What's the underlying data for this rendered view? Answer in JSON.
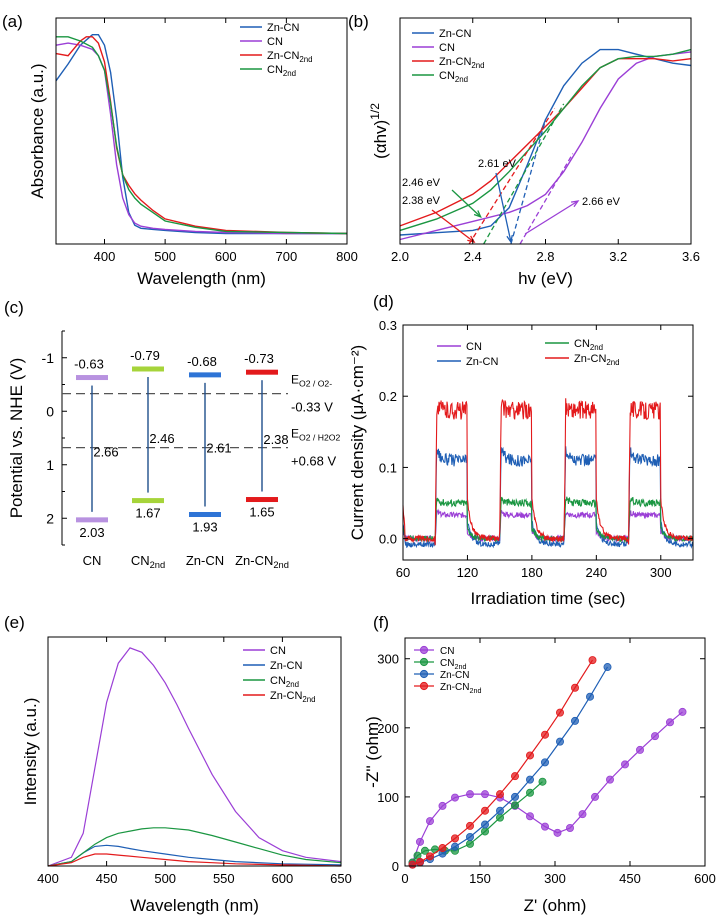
{
  "colors": {
    "Zn-CN": "#1f5fb5",
    "CN": "#9b3fd6",
    "Zn-CN_2nd": "#e31a1c",
    "CN_2nd": "#1a9641",
    "CN_bar": "#b892e0",
    "CN_2nd_bar": "#a6d43a",
    "Zn-CN_bar": "#2e74d6",
    "Zn-CN_2nd_bar": "#e31a1c"
  },
  "chart_data": [
    {
      "panel": "(a)",
      "type": "line",
      "xlabel": "Wavelength (nm)",
      "ylabel": "Absorbance (a.u.)",
      "xlim": [
        320,
        800
      ],
      "ylim": [
        0,
        1.08
      ],
      "xticks": [
        400,
        500,
        600,
        700,
        800
      ],
      "legend": "top-right",
      "series": [
        {
          "name": "Zn-CN",
          "key": "Zn-CN",
          "x": [
            320,
            340,
            360,
            380,
            390,
            400,
            410,
            420,
            430,
            440,
            450,
            460,
            480,
            500,
            550,
            600,
            700,
            800
          ],
          "y": [
            0.78,
            0.86,
            0.95,
            1.0,
            1.0,
            0.95,
            0.82,
            0.6,
            0.32,
            0.15,
            0.09,
            0.075,
            0.07,
            0.065,
            0.055,
            0.05,
            0.05,
            0.05
          ]
        },
        {
          "name": "CN",
          "key": "CN",
          "x": [
            320,
            340,
            360,
            380,
            390,
            400,
            410,
            420,
            430,
            440,
            450,
            460,
            480,
            500,
            550,
            600,
            700,
            800
          ],
          "y": [
            0.95,
            0.96,
            0.95,
            0.93,
            0.9,
            0.83,
            0.62,
            0.38,
            0.22,
            0.14,
            0.1,
            0.085,
            0.075,
            0.07,
            0.06,
            0.055,
            0.05,
            0.05
          ]
        },
        {
          "name": "Zn-CN₂nd",
          "key": "Zn-CN_2nd",
          "x": [
            320,
            340,
            360,
            370,
            380,
            390,
            400,
            410,
            420,
            430,
            440,
            450,
            460,
            480,
            500,
            550,
            600,
            700,
            800
          ],
          "y": [
            0.91,
            0.9,
            0.97,
            0.99,
            0.99,
            0.96,
            0.87,
            0.68,
            0.46,
            0.33,
            0.28,
            0.24,
            0.21,
            0.16,
            0.12,
            0.085,
            0.065,
            0.055,
            0.05
          ]
        },
        {
          "name": "CN₂nd",
          "key": "CN_2nd",
          "x": [
            320,
            340,
            360,
            380,
            390,
            400,
            410,
            420,
            430,
            440,
            450,
            460,
            480,
            500,
            550,
            600,
            700,
            800
          ],
          "y": [
            0.99,
            0.99,
            0.97,
            0.94,
            0.9,
            0.83,
            0.67,
            0.47,
            0.33,
            0.26,
            0.22,
            0.19,
            0.15,
            0.11,
            0.08,
            0.06,
            0.055,
            0.05
          ]
        }
      ]
    },
    {
      "panel": "(b)",
      "type": "line",
      "xlabel": "hv (eV)",
      "ylabel": "(αhv)",
      "ylabel_sup": "1/2",
      "xlim": [
        2.0,
        3.6
      ],
      "ylim": [
        0,
        1.0
      ],
      "xticks": [
        2.0,
        2.4,
        2.8,
        3.2,
        3.6
      ],
      "legend": "top-left",
      "series": [
        {
          "name": "Zn-CN",
          "key": "Zn-CN",
          "x": [
            2.0,
            2.2,
            2.4,
            2.5,
            2.6,
            2.7,
            2.8,
            2.9,
            3.0,
            3.1,
            3.2,
            3.3,
            3.4,
            3.5,
            3.6
          ],
          "y": [
            0.04,
            0.05,
            0.06,
            0.08,
            0.16,
            0.35,
            0.55,
            0.7,
            0.8,
            0.86,
            0.86,
            0.84,
            0.82,
            0.8,
            0.79
          ]
        },
        {
          "name": "CN",
          "key": "CN",
          "x": [
            2.0,
            2.2,
            2.4,
            2.6,
            2.7,
            2.8,
            2.9,
            3.0,
            3.1,
            3.2,
            3.3,
            3.4,
            3.5,
            3.6
          ],
          "y": [
            0.02,
            0.06,
            0.1,
            0.14,
            0.17,
            0.22,
            0.32,
            0.45,
            0.6,
            0.73,
            0.8,
            0.83,
            0.84,
            0.85
          ]
        },
        {
          "name": "Zn-CN₂nd",
          "key": "Zn-CN_2nd",
          "x": [
            2.0,
            2.2,
            2.4,
            2.5,
            2.6,
            2.7,
            2.8,
            2.9,
            3.0,
            3.1,
            3.2,
            3.3,
            3.4,
            3.5,
            3.6
          ],
          "y": [
            0.08,
            0.14,
            0.22,
            0.28,
            0.36,
            0.44,
            0.52,
            0.6,
            0.69,
            0.78,
            0.82,
            0.82,
            0.82,
            0.81,
            0.82
          ]
        },
        {
          "name": "CN₂nd",
          "key": "CN_2nd",
          "x": [
            2.0,
            2.2,
            2.4,
            2.5,
            2.6,
            2.7,
            2.8,
            2.9,
            3.0,
            3.1,
            3.2,
            3.3,
            3.4,
            3.5,
            3.6
          ],
          "y": [
            0.06,
            0.11,
            0.18,
            0.24,
            0.32,
            0.41,
            0.5,
            0.6,
            0.7,
            0.78,
            0.82,
            0.83,
            0.83,
            0.84,
            0.86
          ]
        }
      ],
      "annotations": [
        {
          "text": "2.38 eV",
          "key": "Zn-CN_2nd",
          "value": 2.38
        },
        {
          "text": "2.46 eV",
          "key": "CN_2nd",
          "value": 2.46
        },
        {
          "text": "2.61 eV",
          "key": "Zn-CN",
          "value": 2.61
        },
        {
          "text": "2.66 eV",
          "key": "CN",
          "value": 2.66
        }
      ]
    },
    {
      "panel": "(c)",
      "type": "band-diagram",
      "ylabel": "Potential vs. NHE (V)",
      "ylim": [
        -1.5,
        2.5
      ],
      "yticks": [
        -1,
        0,
        1,
        2
      ],
      "yticklabels": [
        "-1",
        "0",
        "1",
        "2"
      ],
      "samples": [
        {
          "label": "CN",
          "sub": "",
          "key": "CN_bar",
          "cb": -0.63,
          "vb": 2.03,
          "cb_label": "-0.63",
          "vb_label": "2.03",
          "mid_label": "2.66"
        },
        {
          "label": "CN",
          "sub": "2nd",
          "key": "CN_2nd_bar",
          "cb": -0.79,
          "vb": 1.67,
          "cb_label": "-0.79",
          "vb_label": "1.67",
          "mid_label": "2.46"
        },
        {
          "label": "Zn-CN",
          "sub": "",
          "key": "Zn-CN_bar",
          "cb": -0.68,
          "vb": 1.93,
          "cb_label": "-0.68",
          "vb_label": "1.93",
          "mid_label": "2.61"
        },
        {
          "label": "Zn-CN",
          "sub": "2nd",
          "key": "Zn-CN_2nd_bar",
          "cb": -0.73,
          "vb": 1.65,
          "cb_label": "-0.73",
          "vb_label": "1.65",
          "mid_label": "2.38"
        }
      ],
      "reference_lines": [
        {
          "value": -0.33,
          "label_main": "E",
          "label_sub": "O2 / O2-",
          "label_value": "-0.33  V"
        },
        {
          "value": 0.68,
          "label_main": "E",
          "label_sub": "O2 / H2O2",
          "label_value": "+0.68 V"
        }
      ]
    },
    {
      "panel": "(d)",
      "type": "line",
      "xlabel": "Irradiation time (sec)",
      "ylabel": "Current density (μA·cm⁻²)",
      "xlim": [
        60,
        330
      ],
      "ylim": [
        -0.03,
        0.3
      ],
      "xticks": [
        60,
        120,
        180,
        240,
        300
      ],
      "yticks": [
        0.0,
        0.1,
        0.2,
        0.3
      ],
      "light_on": [
        90,
        150,
        210,
        270
      ],
      "light_period": 30,
      "plateau": {
        "CN": 0.033,
        "Zn-CN": 0.11,
        "CN_2nd": 0.05,
        "Zn-CN_2nd": 0.18
      },
      "series": [
        {
          "name": "CN",
          "key": "CN",
          "on": 0.033,
          "spike": 0.04
        },
        {
          "name": "Zn-CN",
          "key": "Zn-CN",
          "on": 0.11,
          "spike": 0.14
        },
        {
          "name": "CN₂nd",
          "key": "CN_2nd",
          "on": 0.05,
          "spike": 0.06
        },
        {
          "name": "Zn-CN₂nd",
          "key": "Zn-CN_2nd",
          "on": 0.18,
          "spike": 0.19
        }
      ]
    },
    {
      "panel": "(e)",
      "type": "line",
      "xlabel": "Wavelength (nm)",
      "ylabel": "Intensity (a.u.)",
      "xlim": [
        400,
        650
      ],
      "ylim": [
        0,
        1.05
      ],
      "xticks": [
        400,
        450,
        500,
        550,
        600,
        650
      ],
      "legend": "top-right",
      "series": [
        {
          "name": "CN",
          "key": "CN",
          "x": [
            400,
            420,
            430,
            440,
            450,
            460,
            470,
            480,
            490,
            500,
            510,
            520,
            540,
            560,
            580,
            600,
            620,
            650
          ],
          "y": [
            0.0,
            0.04,
            0.15,
            0.45,
            0.75,
            0.93,
            1.0,
            0.98,
            0.92,
            0.84,
            0.74,
            0.63,
            0.42,
            0.25,
            0.13,
            0.07,
            0.04,
            0.02
          ]
        },
        {
          "name": "Zn-CN",
          "key": "Zn-CN",
          "x": [
            400,
            420,
            430,
            440,
            450,
            460,
            470,
            480,
            500,
            520,
            540,
            560,
            600,
            650
          ],
          "y": [
            0.0,
            0.02,
            0.06,
            0.09,
            0.095,
            0.09,
            0.08,
            0.07,
            0.055,
            0.04,
            0.03,
            0.02,
            0.01,
            0.005
          ]
        },
        {
          "name": "CN₂nd",
          "key": "CN_2nd",
          "x": [
            400,
            420,
            430,
            440,
            450,
            460,
            470,
            480,
            490,
            500,
            520,
            540,
            560,
            580,
            600,
            620,
            650
          ],
          "y": [
            0.0,
            0.02,
            0.06,
            0.1,
            0.13,
            0.15,
            0.16,
            0.17,
            0.175,
            0.175,
            0.165,
            0.14,
            0.11,
            0.08,
            0.05,
            0.03,
            0.015
          ]
        },
        {
          "name": "Zn-CN₂nd",
          "key": "Zn-CN_2nd",
          "x": [
            400,
            420,
            430,
            440,
            450,
            460,
            480,
            500,
            520,
            540,
            560,
            600,
            650
          ],
          "y": [
            0.0,
            0.015,
            0.04,
            0.055,
            0.055,
            0.05,
            0.04,
            0.03,
            0.02,
            0.015,
            0.01,
            0.005,
            0.0
          ]
        }
      ]
    },
    {
      "panel": "(f)",
      "type": "scatter",
      "xlabel": "Z' (ohm)",
      "ylabel": "-Z'' (ohm)",
      "xlim": [
        0,
        600
      ],
      "ylim": [
        0,
        330
      ],
      "xticks": [
        0,
        150,
        300,
        450,
        600
      ],
      "yticks": [
        0,
        100,
        200,
        300
      ],
      "legend": "top-left",
      "series": [
        {
          "name": "CN",
          "key": "CN",
          "x": [
            15,
            30,
            50,
            75,
            100,
            130,
            160,
            190,
            220,
            250,
            280,
            305,
            330,
            355,
            380,
            410,
            440,
            470,
            500,
            530,
            555
          ],
          "y": [
            5,
            35,
            65,
            87,
            99,
            104,
            104,
            99,
            87,
            72,
            57,
            48,
            55,
            75,
            100,
            125,
            147,
            168,
            188,
            208,
            223
          ]
        },
        {
          "name": "CN₂nd",
          "key": "CN_2nd",
          "x": [
            15,
            25,
            40,
            60,
            80,
            100,
            130,
            160,
            190,
            220,
            250,
            275
          ],
          "y": [
            5,
            15,
            22,
            24,
            22,
            22,
            32,
            50,
            70,
            88,
            106,
            122
          ]
        },
        {
          "name": "Zn-CN",
          "key": "Zn-CN",
          "x": [
            15,
            30,
            50,
            75,
            100,
            130,
            160,
            190,
            220,
            250,
            280,
            310,
            340,
            370,
            405
          ],
          "y": [
            2,
            5,
            10,
            18,
            28,
            42,
            60,
            80,
            100,
            125,
            150,
            180,
            210,
            245,
            288
          ]
        },
        {
          "name": "Zn-CN₂nd",
          "key": "Zn-CN_2nd",
          "x": [
            15,
            30,
            50,
            75,
            100,
            130,
            160,
            190,
            220,
            250,
            280,
            310,
            340,
            375
          ],
          "y": [
            2,
            6,
            14,
            26,
            40,
            58,
            80,
            104,
            130,
            160,
            190,
            222,
            258,
            298
          ]
        }
      ]
    }
  ]
}
